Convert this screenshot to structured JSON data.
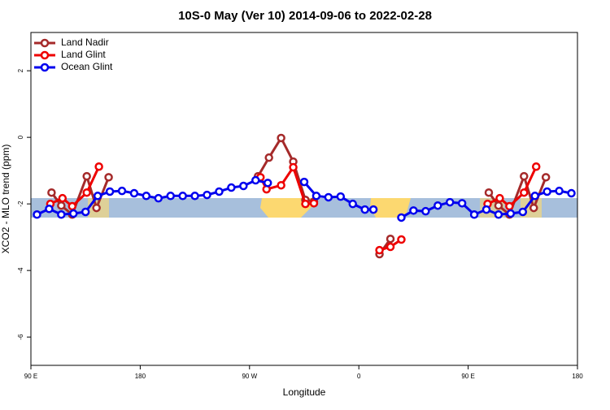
{
  "chart_data": {
    "type": "line",
    "title": "10S-0 May (Ver 10)   2014-09-06 to 2022-02-28",
    "xlabel": "Longitude",
    "ylabel": "XCO2 - MLO trend (ppm)",
    "xlim": [
      90,
      540
    ],
    "ylim": [
      -6.85,
      3.15
    ],
    "xticks": [
      {
        "value": 90,
        "label": "90 E"
      },
      180,
      {
        "value": 270,
        "label": "90 W"
      },
      {
        "value": 360,
        "label": "0"
      },
      {
        "value": 450,
        "label": "90 E"
      },
      {
        "value": 540,
        "label": "180"
      }
    ],
    "yticks": [
      -6,
      -4,
      -2,
      0,
      2
    ],
    "legend": "top-left",
    "series": [
      {
        "name": "Land Nadir",
        "color": "#a52a2a",
        "x": [
          107,
          115,
          124,
          136,
          144,
          154,
          200,
          277,
          286,
          296,
          306,
          316,
          323,
          350,
          377,
          386,
          420,
          467,
          475,
          484,
          496,
          504,
          514
        ],
        "values": [
          -1.66,
          -2.05,
          -2.32,
          -1.17,
          -2.12,
          -1.2,
          null,
          -1.17,
          -0.61,
          -0.02,
          -0.73,
          -1.88,
          -1.93,
          null,
          -3.51,
          -3.05,
          null,
          -1.66,
          -2.05,
          -2.32,
          -1.17,
          -2.12,
          -1.2
        ]
      },
      {
        "name": "Land Glint",
        "color": "#ee0000",
        "x": [
          106,
          116,
          124,
          136,
          146,
          200,
          279,
          284,
          296,
          306,
          316,
          323,
          350,
          377,
          386,
          395,
          420,
          466,
          476,
          484,
          496,
          506
        ],
        "values": [
          -2.0,
          -1.83,
          -2.07,
          -1.66,
          -0.88,
          null,
          -1.2,
          -1.56,
          -1.44,
          -0.9,
          -2.0,
          -1.98,
          null,
          -3.39,
          -3.29,
          -3.07,
          null,
          -2.0,
          -1.83,
          -2.07,
          -1.66,
          -0.88
        ]
      },
      {
        "name": "Ocean Glint",
        "color": "#0000ee",
        "x": [
          95,
          105,
          115,
          125,
          135,
          145,
          155,
          165,
          175,
          185,
          195,
          205,
          215,
          225,
          235,
          245,
          255,
          265,
          275,
          285,
          295,
          305,
          315,
          325,
          335,
          345,
          355,
          365,
          372,
          385,
          395,
          405,
          415,
          425,
          435,
          445,
          455,
          465,
          475,
          485,
          495,
          505,
          515,
          525,
          535
        ],
        "values": [
          -2.32,
          -2.15,
          -2.32,
          -2.29,
          -2.24,
          -1.76,
          -1.63,
          -1.61,
          -1.68,
          -1.76,
          -1.83,
          -1.76,
          -1.76,
          -1.76,
          -1.73,
          -1.63,
          -1.51,
          -1.46,
          -1.29,
          -1.37,
          null,
          null,
          -1.34,
          -1.76,
          -1.8,
          -1.78,
          -2.0,
          -2.17,
          -2.17,
          null,
          -2.41,
          -2.2,
          -2.22,
          -2.05,
          -1.95,
          -1.98,
          -2.32,
          -2.17,
          -2.32,
          -2.29,
          -2.24,
          -1.76,
          -1.63,
          -1.61,
          -1.68
        ]
      }
    ]
  }
}
